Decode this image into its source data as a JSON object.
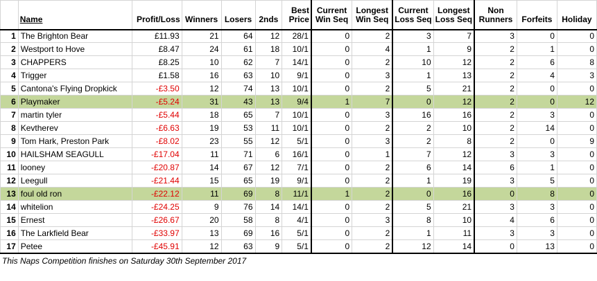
{
  "headers": {
    "name": "Name",
    "profit_loss": "Profit/Loss",
    "winners": "Winners",
    "losers": "Losers",
    "seconds": "2nds",
    "best_price_1": "Best",
    "best_price_2": "Price",
    "cur_win_1": "Current",
    "cur_win_2": "Win Seq",
    "long_win_1": "Longest",
    "long_win_2": "Win Seq",
    "cur_loss_1": "Current",
    "cur_loss_2": "Loss Seq",
    "long_loss_1": "Longest",
    "long_loss_2": "Loss Seq",
    "non_runners_1": "Non",
    "non_runners_2": "Runners",
    "forfeits": "Forfeits",
    "holiday": "Holiday"
  },
  "rows": [
    {
      "rank": "1",
      "name": "The Brighton Bear",
      "pl": "£11.93",
      "neg": false,
      "w": "21",
      "l": "64",
      "s": "12",
      "bp": "28/1",
      "cws": "0",
      "lws": "2",
      "cls": "3",
      "lls": "7",
      "nr": "3",
      "f": "0",
      "h": "0",
      "hl": false
    },
    {
      "rank": "2",
      "name": "Westport to Hove",
      "pl": "£8.47",
      "neg": false,
      "w": "24",
      "l": "61",
      "s": "18",
      "bp": "10/1",
      "cws": "0",
      "lws": "4",
      "cls": "1",
      "lls": "9",
      "nr": "2",
      "f": "1",
      "h": "0",
      "hl": false
    },
    {
      "rank": "3",
      "name": "CHAPPERS",
      "pl": "£8.25",
      "neg": false,
      "w": "10",
      "l": "62",
      "s": "7",
      "bp": "14/1",
      "cws": "0",
      "lws": "2",
      "cls": "10",
      "lls": "12",
      "nr": "2",
      "f": "6",
      "h": "8",
      "hl": false
    },
    {
      "rank": "4",
      "name": "Trigger",
      "pl": "£1.58",
      "neg": false,
      "w": "16",
      "l": "63",
      "s": "10",
      "bp": "9/1",
      "cws": "0",
      "lws": "3",
      "cls": "1",
      "lls": "13",
      "nr": "2",
      "f": "4",
      "h": "3",
      "hl": false
    },
    {
      "rank": "5",
      "name": "Cantona's Flying Dropkick",
      "pl": "-£3.50",
      "neg": true,
      "w": "12",
      "l": "74",
      "s": "13",
      "bp": "10/1",
      "cws": "0",
      "lws": "2",
      "cls": "5",
      "lls": "21",
      "nr": "2",
      "f": "0",
      "h": "0",
      "hl": false
    },
    {
      "rank": "6",
      "name": "Playmaker",
      "pl": "-£5.24",
      "neg": true,
      "w": "31",
      "l": "43",
      "s": "13",
      "bp": "9/4",
      "cws": "1",
      "lws": "7",
      "cls": "0",
      "lls": "12",
      "nr": "2",
      "f": "0",
      "h": "12",
      "hl": true
    },
    {
      "rank": "7",
      "name": "martin tyler",
      "pl": "-£5.44",
      "neg": true,
      "w": "18",
      "l": "65",
      "s": "7",
      "bp": "10/1",
      "cws": "0",
      "lws": "3",
      "cls": "16",
      "lls": "16",
      "nr": "2",
      "f": "3",
      "h": "0",
      "hl": false
    },
    {
      "rank": "8",
      "name": "Kevtherev",
      "pl": "-£6.63",
      "neg": true,
      "w": "19",
      "l": "53",
      "s": "11",
      "bp": "10/1",
      "cws": "0",
      "lws": "2",
      "cls": "2",
      "lls": "10",
      "nr": "2",
      "f": "14",
      "h": "0",
      "hl": false
    },
    {
      "rank": "9",
      "name": "Tom Hark, Preston Park",
      "pl": "-£8.02",
      "neg": true,
      "w": "23",
      "l": "55",
      "s": "12",
      "bp": "5/1",
      "cws": "0",
      "lws": "3",
      "cls": "2",
      "lls": "8",
      "nr": "2",
      "f": "0",
      "h": "9",
      "hl": false
    },
    {
      "rank": "10",
      "name": "HAILSHAM SEAGULL",
      "pl": "-£17.04",
      "neg": true,
      "w": "11",
      "l": "71",
      "s": "6",
      "bp": "16/1",
      "cws": "0",
      "lws": "1",
      "cls": "7",
      "lls": "12",
      "nr": "3",
      "f": "3",
      "h": "0",
      "hl": false
    },
    {
      "rank": "11",
      "name": "looney",
      "pl": "-£20.87",
      "neg": true,
      "w": "14",
      "l": "67",
      "s": "12",
      "bp": "7/1",
      "cws": "0",
      "lws": "2",
      "cls": "6",
      "lls": "14",
      "nr": "6",
      "f": "1",
      "h": "0",
      "hl": false
    },
    {
      "rank": "12",
      "name": "Leegull",
      "pl": "-£21.44",
      "neg": true,
      "w": "15",
      "l": "65",
      "s": "19",
      "bp": "9/1",
      "cws": "0",
      "lws": "2",
      "cls": "1",
      "lls": "19",
      "nr": "3",
      "f": "5",
      "h": "0",
      "hl": false
    },
    {
      "rank": "13",
      "name": "foul old ron",
      "pl": "-£22.12",
      "neg": true,
      "w": "11",
      "l": "69",
      "s": "8",
      "bp": "11/1",
      "cws": "1",
      "lws": "2",
      "cls": "0",
      "lls": "16",
      "nr": "0",
      "f": "8",
      "h": "0",
      "hl": true
    },
    {
      "rank": "14",
      "name": "whitelion",
      "pl": "-£24.25",
      "neg": true,
      "w": "9",
      "l": "76",
      "s": "14",
      "bp": "14/1",
      "cws": "0",
      "lws": "2",
      "cls": "5",
      "lls": "21",
      "nr": "3",
      "f": "3",
      "h": "0",
      "hl": false
    },
    {
      "rank": "15",
      "name": "Ernest",
      "pl": "-£26.67",
      "neg": true,
      "w": "20",
      "l": "58",
      "s": "8",
      "bp": "4/1",
      "cws": "0",
      "lws": "3",
      "cls": "8",
      "lls": "10",
      "nr": "4",
      "f": "6",
      "h": "0",
      "hl": false
    },
    {
      "rank": "16",
      "name": "The Larkfield Bear",
      "pl": "-£33.97",
      "neg": true,
      "w": "13",
      "l": "69",
      "s": "16",
      "bp": "5/1",
      "cws": "0",
      "lws": "2",
      "cls": "1",
      "lls": "11",
      "nr": "3",
      "f": "3",
      "h": "0",
      "hl": false
    },
    {
      "rank": "17",
      "name": "Petee",
      "pl": "-£45.91",
      "neg": true,
      "w": "12",
      "l": "63",
      "s": "9",
      "bp": "5/1",
      "cws": "0",
      "lws": "2",
      "cls": "12",
      "lls": "14",
      "nr": "0",
      "f": "13",
      "h": "0",
      "hl": false
    }
  ],
  "footnote": "This Naps Competition finishes on Saturday 30th September 2017",
  "colors": {
    "highlight": "#c4d79b",
    "negative": "#e00000"
  }
}
